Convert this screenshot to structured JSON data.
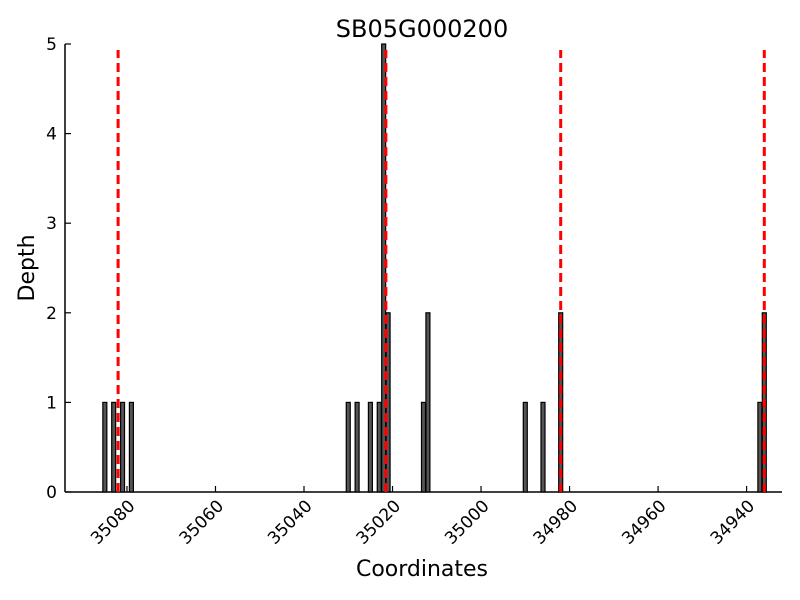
{
  "chart_data": {
    "type": "bar",
    "title": "SB05G000200",
    "xlabel": "Coordinates",
    "ylabel": "Depth",
    "x_reversed": true,
    "xlim": [
      35094,
      34932
    ],
    "ylim": [
      0,
      5
    ],
    "xticks": [
      35080,
      35060,
      35040,
      35020,
      35000,
      34980,
      34960,
      34940
    ],
    "yticks": [
      0,
      1,
      2,
      3,
      4,
      5
    ],
    "bar_width": 1,
    "bar_color": "#555555",
    "marker_color": "#ff0000",
    "grid": false,
    "bars": [
      {
        "x": 35085,
        "y": 1
      },
      {
        "x": 35083,
        "y": 1
      },
      {
        "x": 35081,
        "y": 1
      },
      {
        "x": 35079,
        "y": 1
      },
      {
        "x": 35030,
        "y": 1
      },
      {
        "x": 35028,
        "y": 1
      },
      {
        "x": 35025,
        "y": 1
      },
      {
        "x": 35023,
        "y": 1
      },
      {
        "x": 35022,
        "y": 5
      },
      {
        "x": 35021,
        "y": 2
      },
      {
        "x": 35013,
        "y": 1
      },
      {
        "x": 35012,
        "y": 2
      },
      {
        "x": 34990,
        "y": 1
      },
      {
        "x": 34986,
        "y": 1
      },
      {
        "x": 34982,
        "y": 2
      },
      {
        "x": 34937,
        "y": 1
      },
      {
        "x": 34936,
        "y": 2
      }
    ],
    "markers": [
      35082,
      35021.5,
      34982,
      34936
    ]
  }
}
